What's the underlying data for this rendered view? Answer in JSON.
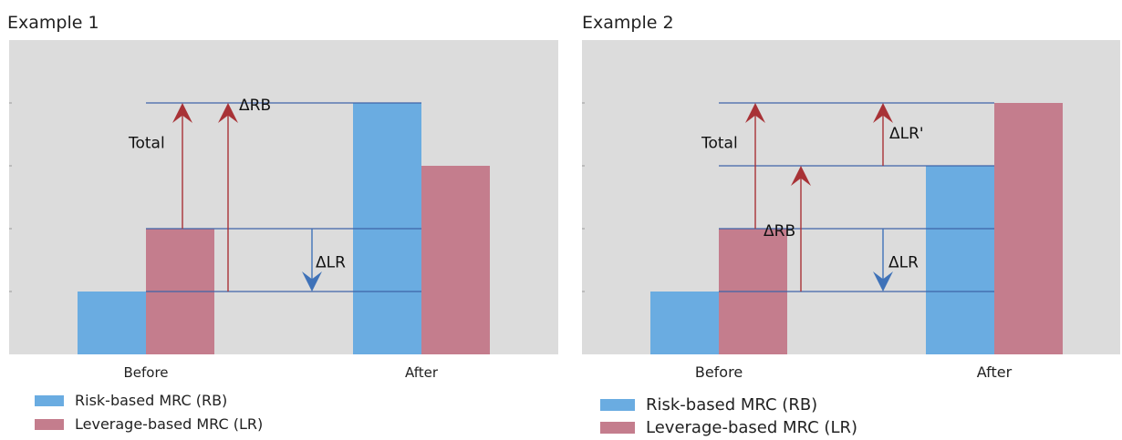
{
  "colors": {
    "rb": "#6aace1",
    "lr": "#c47d8d",
    "arrow_red": "#a83236",
    "arrow_blue": "#3f72b8",
    "line": "#3f64a8",
    "plot_bg": "#dcdcdc"
  },
  "chart_data": [
    {
      "type": "bar",
      "title": "Example 1",
      "categories": [
        "Before",
        "After"
      ],
      "series": [
        {
          "name": "Risk-based MRC (RB)",
          "values": [
            1,
            4
          ]
        },
        {
          "name": "Leverage-based MRC (LR)",
          "values": [
            2,
            3
          ]
        }
      ],
      "ylim": [
        0,
        4
      ],
      "annotations": [
        {
          "label": "Total",
          "from": 2,
          "to": 4,
          "direction": "up"
        },
        {
          "label": "ΔRB",
          "from": 1,
          "to": 4,
          "direction": "up"
        },
        {
          "label": "ΔLR",
          "from": 2,
          "to": 1,
          "direction": "down"
        }
      ]
    },
    {
      "type": "bar",
      "title": "Example 2",
      "categories": [
        "Before",
        "After"
      ],
      "series": [
        {
          "name": "Risk-based MRC (RB)",
          "values": [
            1,
            3
          ]
        },
        {
          "name": "Leverage-based MRC (LR)",
          "values": [
            2,
            4
          ]
        }
      ],
      "ylim": [
        0,
        4
      ],
      "annotations": [
        {
          "label": "Total",
          "from": 2,
          "to": 4,
          "direction": "up"
        },
        {
          "label": "ΔRB",
          "from": 1,
          "to": 3,
          "direction": "up"
        },
        {
          "label": "ΔLR'",
          "from": 3,
          "to": 4,
          "direction": "up"
        },
        {
          "label": "ΔLR",
          "from": 2,
          "to": 1,
          "direction": "down"
        }
      ]
    }
  ]
}
